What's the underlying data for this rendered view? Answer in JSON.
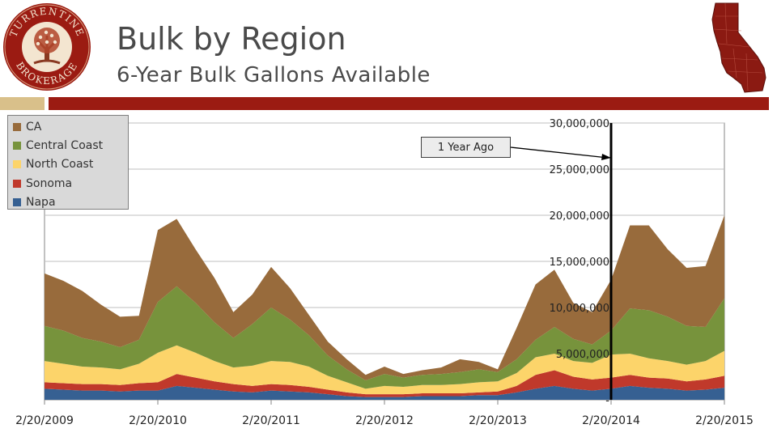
{
  "header": {
    "title": "Bulk by Region",
    "subtitle": "6-Year Bulk Gallons Available"
  },
  "logo": {
    "top_text": "TURRENTINE",
    "bottom_text": "BROKERAGE"
  },
  "colors": {
    "ca": "#986b3c",
    "central_coast": "#77933c",
    "north_coast": "#fcd46a",
    "sonoma": "#c0392b",
    "napa": "#366092",
    "banner_red": "#9b1b12",
    "banner_tan": "#d9c08a"
  },
  "annotation": {
    "label": "1 Year Ago"
  },
  "chart_data": {
    "type": "area",
    "stacked": true,
    "title": "",
    "xlabel": "",
    "ylabel": "",
    "ylim": [
      0,
      30000000
    ],
    "y_ticks": [
      "-",
      "5,000,000",
      "10,000,000",
      "15,000,000",
      "20,000,000",
      "25,000,000",
      "30,000,000"
    ],
    "x_ticks": [
      "2/20/2009",
      "2/20/2010",
      "2/20/2011",
      "2/20/2012",
      "2/20/2013",
      "2/20/2014",
      "2/20/2015"
    ],
    "x": [
      "2/20/2009",
      "4/20/2009",
      "6/20/2009",
      "8/20/2009",
      "10/20/2009",
      "12/20/2009",
      "2/20/2010",
      "4/20/2010",
      "6/20/2010",
      "8/20/2010",
      "10/20/2010",
      "12/20/2010",
      "2/20/2011",
      "4/20/2011",
      "6/20/2011",
      "8/20/2011",
      "10/20/2011",
      "12/20/2011",
      "2/20/2012",
      "4/20/2012",
      "6/20/2012",
      "8/20/2012",
      "10/20/2012",
      "12/20/2012",
      "2/20/2013",
      "4/20/2013",
      "6/20/2013",
      "8/20/2013",
      "10/20/2013",
      "12/20/2013",
      "2/20/2014",
      "4/20/2014",
      "6/20/2014",
      "8/20/2014",
      "10/20/2014",
      "12/20/2014",
      "2/20/2015"
    ],
    "series": [
      {
        "name": "Napa",
        "values": [
          1200000,
          1100000,
          1000000,
          1000000,
          900000,
          1000000,
          1000000,
          1500000,
          1300000,
          1100000,
          900000,
          800000,
          1000000,
          900000,
          800000,
          600000,
          400000,
          300000,
          300000,
          300000,
          400000,
          400000,
          400000,
          500000,
          500000,
          800000,
          1200000,
          1500000,
          1200000,
          1000000,
          1200000,
          1500000,
          1300000,
          1200000,
          1000000,
          1100000,
          1300000
        ]
      },
      {
        "name": "Sonoma",
        "values": [
          700000,
          700000,
          700000,
          700000,
          700000,
          800000,
          900000,
          1300000,
          1100000,
          900000,
          800000,
          700000,
          700000,
          700000,
          600000,
          500000,
          400000,
          300000,
          300000,
          300000,
          300000,
          300000,
          300000,
          300000,
          400000,
          700000,
          1500000,
          1700000,
          1300000,
          1200000,
          1200000,
          1200000,
          1100000,
          1100000,
          1000000,
          1100000,
          1300000
        ]
      },
      {
        "name": "North Coast",
        "values": [
          2300000,
          2100000,
          1900000,
          1800000,
          1700000,
          2100000,
          3200000,
          3100000,
          2700000,
          2200000,
          1800000,
          2200000,
          2500000,
          2500000,
          2200000,
          1500000,
          1100000,
          600000,
          900000,
          800000,
          900000,
          900000,
          1000000,
          1100000,
          1100000,
          1400000,
          1900000,
          1800000,
          1700000,
          1800000,
          2500000,
          2300000,
          2100000,
          1900000,
          1800000,
          2000000,
          2700000
        ]
      },
      {
        "name": "Central Coast",
        "values": [
          3800000,
          3600000,
          3100000,
          2800000,
          2400000,
          2600000,
          5500000,
          6400000,
          5400000,
          4200000,
          3200000,
          4500000,
          5800000,
          4600000,
          3400000,
          2200000,
          1400000,
          900000,
          1300000,
          1000000,
          1100000,
          1200000,
          1300000,
          1400000,
          1000000,
          1500000,
          1900000,
          2900000,
          2400000,
          2000000,
          2600000,
          4900000,
          5200000,
          4800000,
          4200000,
          3700000,
          5700000
        ]
      },
      {
        "name": "CA",
        "values": [
          5700000,
          5400000,
          5100000,
          4000000,
          3300000,
          2600000,
          7800000,
          7300000,
          5800000,
          4800000,
          2800000,
          3200000,
          4400000,
          3400000,
          2200000,
          1500000,
          1100000,
          600000,
          800000,
          400000,
          500000,
          700000,
          1400000,
          800000,
          300000,
          3400000,
          6000000,
          6200000,
          3900000,
          3500000,
          5500000,
          9000000,
          9200000,
          7300000,
          6300000,
          6600000,
          9000000
        ]
      }
    ],
    "legend": [
      "CA",
      "Central Coast",
      "North Coast",
      "Sonoma",
      "Napa"
    ],
    "legend_position": "top-left",
    "grid": true
  }
}
